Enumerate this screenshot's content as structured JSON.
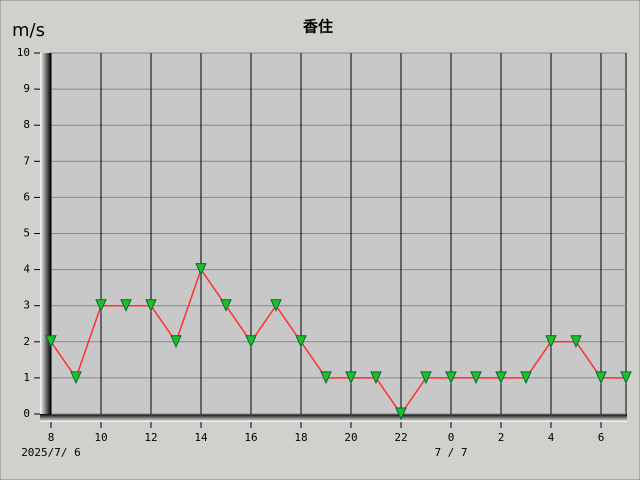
{
  "chart_data": {
    "type": "line",
    "title": "香住",
    "y_unit": "m/s",
    "categories": [
      "8",
      null,
      "10",
      null,
      "12",
      null,
      "14",
      null,
      "16",
      null,
      "18",
      null,
      "20",
      null,
      "22",
      null,
      "0",
      null,
      "2",
      null,
      "4",
      null,
      "6",
      null
    ],
    "date_labels": [
      "2025/7/ 6",
      null,
      null,
      null,
      null,
      null,
      null,
      null,
      null,
      null,
      null,
      null,
      null,
      null,
      null,
      null,
      "7 / 7",
      null,
      null,
      null,
      null,
      null,
      null,
      null
    ],
    "values": [
      2,
      1,
      3,
      3,
      3,
      2,
      4,
      3,
      2,
      3,
      2,
      1,
      1,
      1,
      0,
      1,
      1,
      1,
      1,
      1,
      2,
      2,
      1,
      1
    ],
    "color": "#ff3030",
    "marker_color": "#20c020",
    "ylim": [
      0,
      10
    ],
    "yticks": [
      0,
      1,
      2,
      3,
      4,
      5,
      6,
      7,
      8,
      9,
      10
    ],
    "grid": true
  }
}
